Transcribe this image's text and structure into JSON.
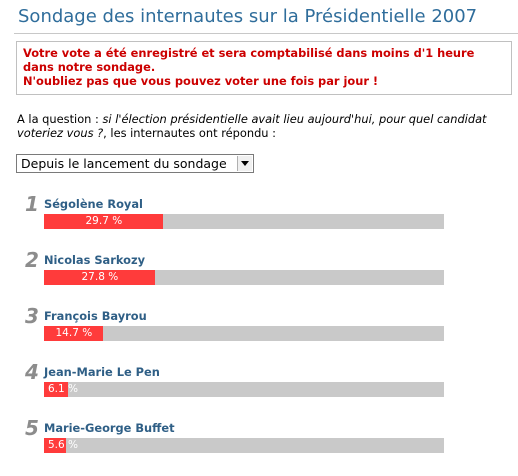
{
  "page_title": "Sondage des internautes sur la Présidentielle 2007",
  "notice": {
    "line1": "Votre vote a été enregistré et sera comptabilisé dans moins d'1 heure",
    "line1b": "dans notre sondage.",
    "line2": "N'oubliez pas que vous pouvez voter une fois par jour !"
  },
  "question": {
    "prefix": "A la question : ",
    "text": "si l'élection présidentielle avait lieu aujourd'hui, pour quel candidat voteriez vous ?",
    "suffix": ", les internautes ont répondu :"
  },
  "period_select": {
    "selected": "Depuis le lancement du sondage"
  },
  "results": [
    {
      "rank": "1",
      "name": "Ségolène Royal",
      "percent": 29.7,
      "label": "29.7 %"
    },
    {
      "rank": "2",
      "name": "Nicolas Sarkozy",
      "percent": 27.8,
      "label": "27.8 %"
    },
    {
      "rank": "3",
      "name": "François Bayrou",
      "percent": 14.7,
      "label": "14.7 %"
    },
    {
      "rank": "4",
      "name": "Jean-Marie Le Pen",
      "percent": 6.1,
      "label": "6.1 %"
    },
    {
      "rank": "5",
      "name": "Marie-George Buffet",
      "percent": 5.6,
      "label": "5.6 %"
    }
  ],
  "colors": {
    "title": "#2f6d9b",
    "notice": "#cc0000",
    "bar_fill": "#ff3b3b",
    "bar_track": "#c9c9c9",
    "candidate": "#2f5f86",
    "rank": "#8c8c8c"
  }
}
